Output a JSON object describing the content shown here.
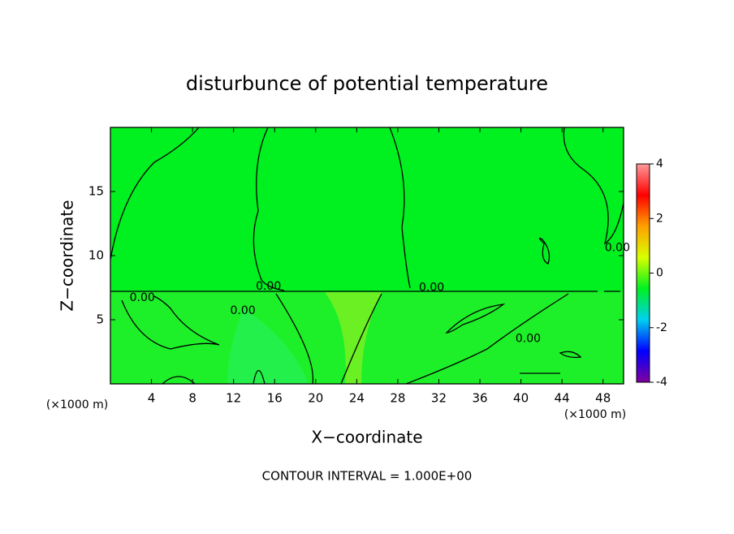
{
  "chart_data": {
    "type": "contour",
    "title": "disturbunce of potential temperature",
    "xlabel": "X−coordinate",
    "ylabel": "Z−coordinate",
    "x_unit_left": "(×1000 m)",
    "x_unit_right": "(×1000 m)",
    "footnote": "CONTOUR INTERVAL = 1.000E+00",
    "xlim": [
      0,
      50
    ],
    "ylim": [
      0,
      20
    ],
    "xticks": [
      4,
      8,
      12,
      16,
      20,
      24,
      28,
      32,
      36,
      40,
      44,
      48
    ],
    "yticks": [
      5,
      10,
      15
    ],
    "fill_color": "#00f020",
    "colorbar": {
      "lim": [
        -4,
        4
      ],
      "ticks": [
        -4,
        -2,
        0,
        2,
        4
      ],
      "colors": [
        "#8000a0",
        "#0000ff",
        "#00d0f0",
        "#00f020",
        "#d8ff00",
        "#ffa000",
        "#ff0000",
        "#ff9a9a"
      ]
    },
    "contour_labels": [
      {
        "text": "0.00",
        "x": 3.1,
        "y": 6.7
      },
      {
        "text": "0.00",
        "x": 15.4,
        "y": 7.6
      },
      {
        "text": "0.00",
        "x": 12.9,
        "y": 5.7
      },
      {
        "text": "0.00",
        "x": 31.3,
        "y": 7.5
      },
      {
        "text": "0.00",
        "x": 40.7,
        "y": 3.5
      },
      {
        "text": "0.00",
        "x": 49.4,
        "y": 10.6
      }
    ]
  }
}
